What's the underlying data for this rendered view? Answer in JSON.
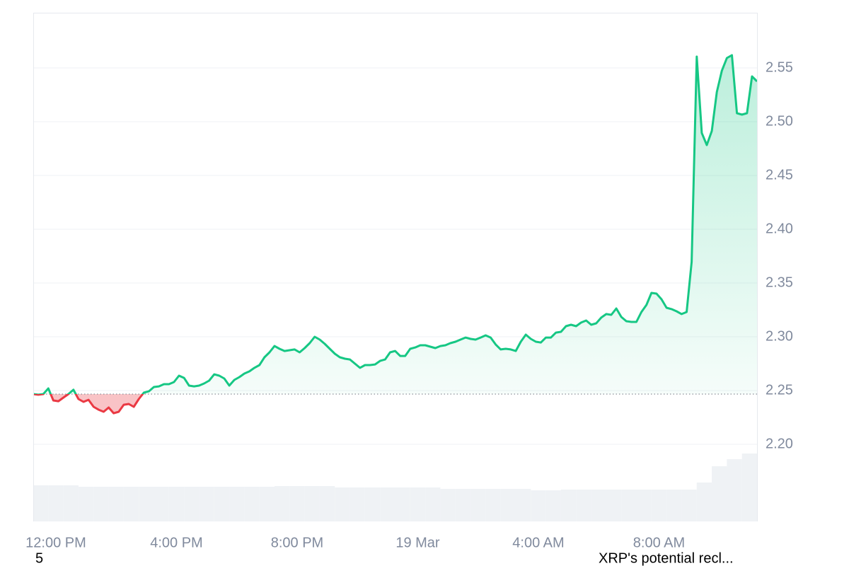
{
  "chart_data": {
    "type": "line",
    "x": [
      -45,
      -35,
      -25,
      -15,
      -5,
      5,
      15,
      25,
      35,
      45,
      55,
      65,
      75,
      85,
      95,
      105,
      115,
      125,
      135,
      145,
      155,
      165,
      175,
      185,
      195,
      205,
      215,
      225,
      235,
      245,
      255,
      265,
      275,
      285,
      295,
      305,
      315,
      325,
      335,
      345,
      355,
      365,
      375,
      385,
      395,
      405,
      415,
      425,
      435,
      445,
      455,
      465,
      475,
      485,
      495,
      505,
      515,
      525,
      535,
      545,
      555,
      565,
      575,
      585,
      595,
      605,
      615,
      625,
      635,
      645,
      655,
      665,
      675,
      685,
      695,
      705,
      715,
      725,
      735,
      745,
      755,
      765,
      775,
      785,
      795,
      805,
      815,
      825,
      835,
      845,
      855,
      865,
      875,
      885,
      895,
      905,
      915,
      925,
      935,
      945,
      955,
      965,
      975,
      985,
      995,
      1005,
      1015,
      1025,
      1035,
      1045,
      1055,
      1065,
      1075,
      1085,
      1095,
      1105,
      1115,
      1125,
      1135,
      1145,
      1155,
      1165,
      1175,
      1185,
      1195,
      1205,
      1215,
      1225,
      1235,
      1245,
      1255,
      1265,
      1275,
      1285,
      1295,
      1305,
      1315,
      1325,
      1335,
      1345,
      1355,
      1365,
      1375,
      1385,
      1395
    ],
    "series": [
      {
        "color": "#16c784",
        "negative_color": "#ea3943",
        "values": [
          2.2467,
          2.2461,
          2.2467,
          2.252,
          2.2408,
          2.2401,
          2.2434,
          2.2467,
          2.2507,
          2.2421,
          2.2395,
          2.2414,
          2.2349,
          2.2322,
          2.2303,
          2.2342,
          2.2289,
          2.2303,
          2.2368,
          2.2375,
          2.2349,
          2.2421,
          2.248,
          2.2493,
          2.2533,
          2.2539,
          2.2559,
          2.2559,
          2.2579,
          2.2638,
          2.2618,
          2.2546,
          2.2539,
          2.2546,
          2.2566,
          2.2592,
          2.2651,
          2.2638,
          2.2612,
          2.2546,
          2.2599,
          2.2625,
          2.2658,
          2.2678,
          2.2711,
          2.2737,
          2.2809,
          2.2855,
          2.2914,
          2.2888,
          2.2868,
          2.2875,
          2.2882,
          2.2855,
          2.2895,
          2.2941,
          2.3,
          2.2974,
          2.2934,
          2.2888,
          2.2842,
          2.2809,
          2.2796,
          2.2789,
          2.275,
          2.2711,
          2.2737,
          2.2737,
          2.2743,
          2.2776,
          2.2789,
          2.2855,
          2.2868,
          2.2822,
          2.2822,
          2.2888,
          2.2901,
          2.2921,
          2.2921,
          2.2908,
          2.2895,
          2.2914,
          2.2921,
          2.2941,
          2.2954,
          2.2974,
          2.2993,
          2.298,
          2.2974,
          2.2993,
          2.3013,
          2.2993,
          2.2928,
          2.2882,
          2.2888,
          2.2882,
          2.2868,
          2.2954,
          2.302,
          2.298,
          2.2954,
          2.2947,
          2.2993,
          2.2993,
          2.3039,
          2.3046,
          2.3099,
          2.3112,
          2.3099,
          2.3132,
          2.3151,
          2.3112,
          2.3125,
          2.3178,
          2.3211,
          2.3204,
          2.3263,
          2.3184,
          2.3145,
          2.3138,
          2.3138,
          2.323,
          2.3296,
          2.3408,
          2.3401,
          2.3349,
          2.327,
          2.3257,
          2.3237,
          2.3211,
          2.323,
          2.3697,
          2.5605,
          2.4895,
          2.4783,
          2.4914,
          2.5276,
          2.5474,
          2.5592,
          2.5618,
          2.5079,
          2.5066,
          2.5079,
          2.5421,
          2.5375
        ]
      }
    ],
    "baseline": 2.2467,
    "xlim": [
      -45,
      1395
    ],
    "xticks": [
      {
        "value": 0,
        "label": "12:00 PM"
      },
      {
        "value": 240,
        "label": "4:00 PM"
      },
      {
        "value": 480,
        "label": "8:00 PM"
      },
      {
        "value": 720,
        "label": "19 Mar"
      },
      {
        "value": 960,
        "label": "4:00 AM"
      },
      {
        "value": 1200,
        "label": "8:00 AM"
      }
    ],
    "ylim": [
      2.1283,
      2.6013
    ],
    "yticks": [
      {
        "value": 2.2,
        "label": "2.20"
      },
      2.25,
      {
        "value": 2.3,
        "label": "2.30"
      },
      2.35,
      {
        "value": 2.4,
        "label": "2.40"
      },
      2.45,
      {
        "value": 2.5,
        "label": "2.50"
      },
      2.55
    ],
    "grid": true,
    "volume": {
      "color": "#eff2f5",
      "lim": [
        0,
        719
      ],
      "x": [
        -45,
        -15,
        15,
        45,
        75,
        105,
        135,
        165,
        195,
        225,
        255,
        285,
        315,
        345,
        375,
        405,
        435,
        465,
        495,
        525,
        555,
        585,
        615,
        645,
        675,
        705,
        735,
        765,
        795,
        825,
        855,
        885,
        915,
        945,
        975,
        1005,
        1035,
        1065,
        1095,
        1125,
        1155,
        1185,
        1215,
        1245,
        1275,
        1305,
        1335,
        1365
      ],
      "values": [
        51,
        51,
        51,
        49,
        49,
        49,
        49,
        49,
        49,
        49,
        49,
        49,
        49,
        49,
        49,
        49,
        50,
        50,
        50,
        50,
        48,
        48,
        48,
        48,
        48,
        48,
        48,
        46,
        46,
        46,
        46,
        46,
        46,
        44,
        44,
        45,
        45,
        45,
        45,
        45,
        45,
        45,
        45,
        45,
        55,
        78,
        88,
        96
      ]
    },
    "annotations": [
      "5",
      "XRP's potential recl..."
    ]
  }
}
